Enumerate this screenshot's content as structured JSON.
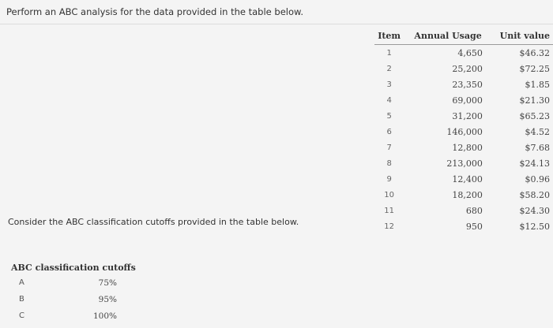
{
  "instruction": "Perform an ABC analysis for the data provided in the table below.",
  "items_table": {
    "headers": {
      "item": "Item",
      "usage": "Annual Usage",
      "unit_value": "Unit value"
    },
    "rows": [
      {
        "item": "1",
        "usage": "4,650",
        "unit_value": "$46.32"
      },
      {
        "item": "2",
        "usage": "25,200",
        "unit_value": "$72.25"
      },
      {
        "item": "3",
        "usage": "23,350",
        "unit_value": "$1.85"
      },
      {
        "item": "4",
        "usage": "69,000",
        "unit_value": "$21.30"
      },
      {
        "item": "5",
        "usage": "31,200",
        "unit_value": "$65.23"
      },
      {
        "item": "6",
        "usage": "146,000",
        "unit_value": "$4.52"
      },
      {
        "item": "7",
        "usage": "12,800",
        "unit_value": "$7.68"
      },
      {
        "item": "8",
        "usage": "213,000",
        "unit_value": "$24.13"
      },
      {
        "item": "9",
        "usage": "12,400",
        "unit_value": "$0.96"
      },
      {
        "item": "10",
        "usage": "18,200",
        "unit_value": "$58.20"
      },
      {
        "item": "11",
        "usage": "680",
        "unit_value": "$24.30"
      },
      {
        "item": "12",
        "usage": "950",
        "unit_value": "$12.50"
      }
    ]
  },
  "consider_text": "Consider the ABC classification cutoffs provided in the table below.",
  "cutoffs": {
    "title": "ABC classification cutoffs",
    "rows": [
      {
        "class": "A",
        "pct": "75%"
      },
      {
        "class": "B",
        "pct": "95%"
      },
      {
        "class": "C",
        "pct": "100%"
      }
    ]
  }
}
